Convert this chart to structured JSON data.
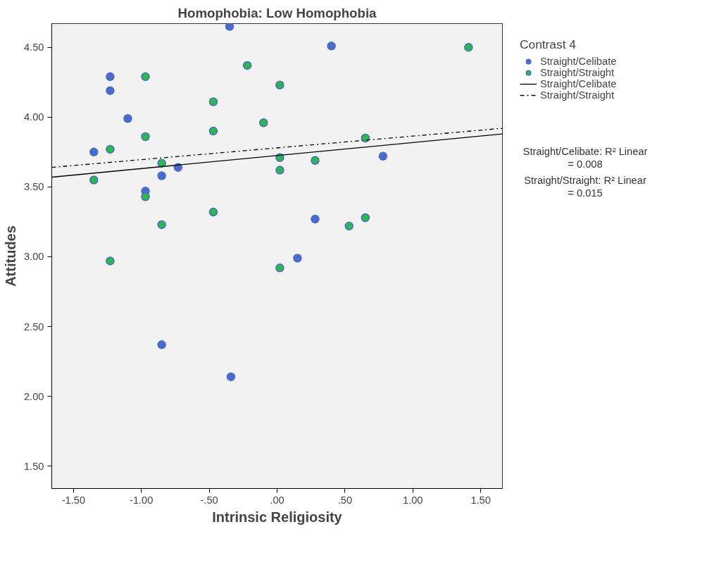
{
  "chart_data": {
    "type": "scatter",
    "title": "Homophobia: Low Homophobia",
    "xlabel": "Intrinsic Religiosity",
    "ylabel": "Attitudes",
    "legend_title": "Contrast 4",
    "xlim": [
      -1.66,
      1.66
    ],
    "ylim": [
      1.34,
      4.67
    ],
    "xticks": [
      {
        "value": -1.5,
        "label": "-1.50"
      },
      {
        "value": -1.0,
        "label": "-1.00"
      },
      {
        "value": -0.5,
        "label": "-.50"
      },
      {
        "value": 0,
        "label": ".00"
      },
      {
        "value": 0.5,
        "label": ".50"
      },
      {
        "value": 1.0,
        "label": "1.00"
      },
      {
        "value": 1.5,
        "label": "1.50"
      }
    ],
    "yticks": [
      {
        "value": 1.5,
        "label": "1.50"
      },
      {
        "value": 2.0,
        "label": "2.00"
      },
      {
        "value": 2.5,
        "label": "2.50"
      },
      {
        "value": 3.0,
        "label": "3.00"
      },
      {
        "value": 3.5,
        "label": "3.50"
      },
      {
        "value": 4.0,
        "label": "4.00"
      },
      {
        "value": 4.5,
        "label": "4.50"
      }
    ],
    "grid": false,
    "legend": "right",
    "marker": "circle",
    "series": [
      {
        "name": "Straight/Celibate",
        "color": "#4a6bc8",
        "x": [
          -0.35,
          -1.23,
          -1.23,
          -1.1,
          -1.35,
          -0.73,
          -0.85,
          -0.97,
          0.4,
          0.78,
          0.28,
          0.15,
          -0.85,
          -0.34
        ],
        "values": [
          4.65,
          4.29,
          4.19,
          3.99,
          3.75,
          3.64,
          3.58,
          3.47,
          4.51,
          3.72,
          3.27,
          2.99,
          2.37,
          2.14
        ]
      },
      {
        "name": "Straight/Straight",
        "color": "#2db84d",
        "x": [
          -0.97,
          -0.22,
          -0.47,
          0.02,
          -0.1,
          -0.47,
          -0.97,
          -1.23,
          -0.85,
          -1.35,
          -0.97,
          -0.85,
          -0.47,
          -1.23,
          1.41,
          0.02,
          0.02,
          0.28,
          0.65,
          0.65,
          0.53,
          0.02
        ],
        "values": [
          4.29,
          4.37,
          4.11,
          4.23,
          3.96,
          3.9,
          3.86,
          3.77,
          3.67,
          3.55,
          3.43,
          3.23,
          3.32,
          2.97,
          4.5,
          3.71,
          3.62,
          3.69,
          3.85,
          3.28,
          3.22,
          2.92
        ]
      },
      {
        "name": "Straight/Celibate",
        "type": "line",
        "marker": "none",
        "line_style": "solid",
        "color": "#000000",
        "x": [
          -1.66,
          1.66
        ],
        "values": [
          3.57,
          3.88
        ]
      },
      {
        "name": "Straight/Straight",
        "type": "line",
        "marker": "none",
        "line_style": "dashdot",
        "color": "#000000",
        "x": [
          -1.66,
          1.66
        ],
        "values": [
          3.64,
          3.92
        ]
      }
    ],
    "annotations": [
      "Straight/Celibate: R² Linear = 0.008",
      "Straight/Straight: R² Linear = 0.015"
    ]
  }
}
